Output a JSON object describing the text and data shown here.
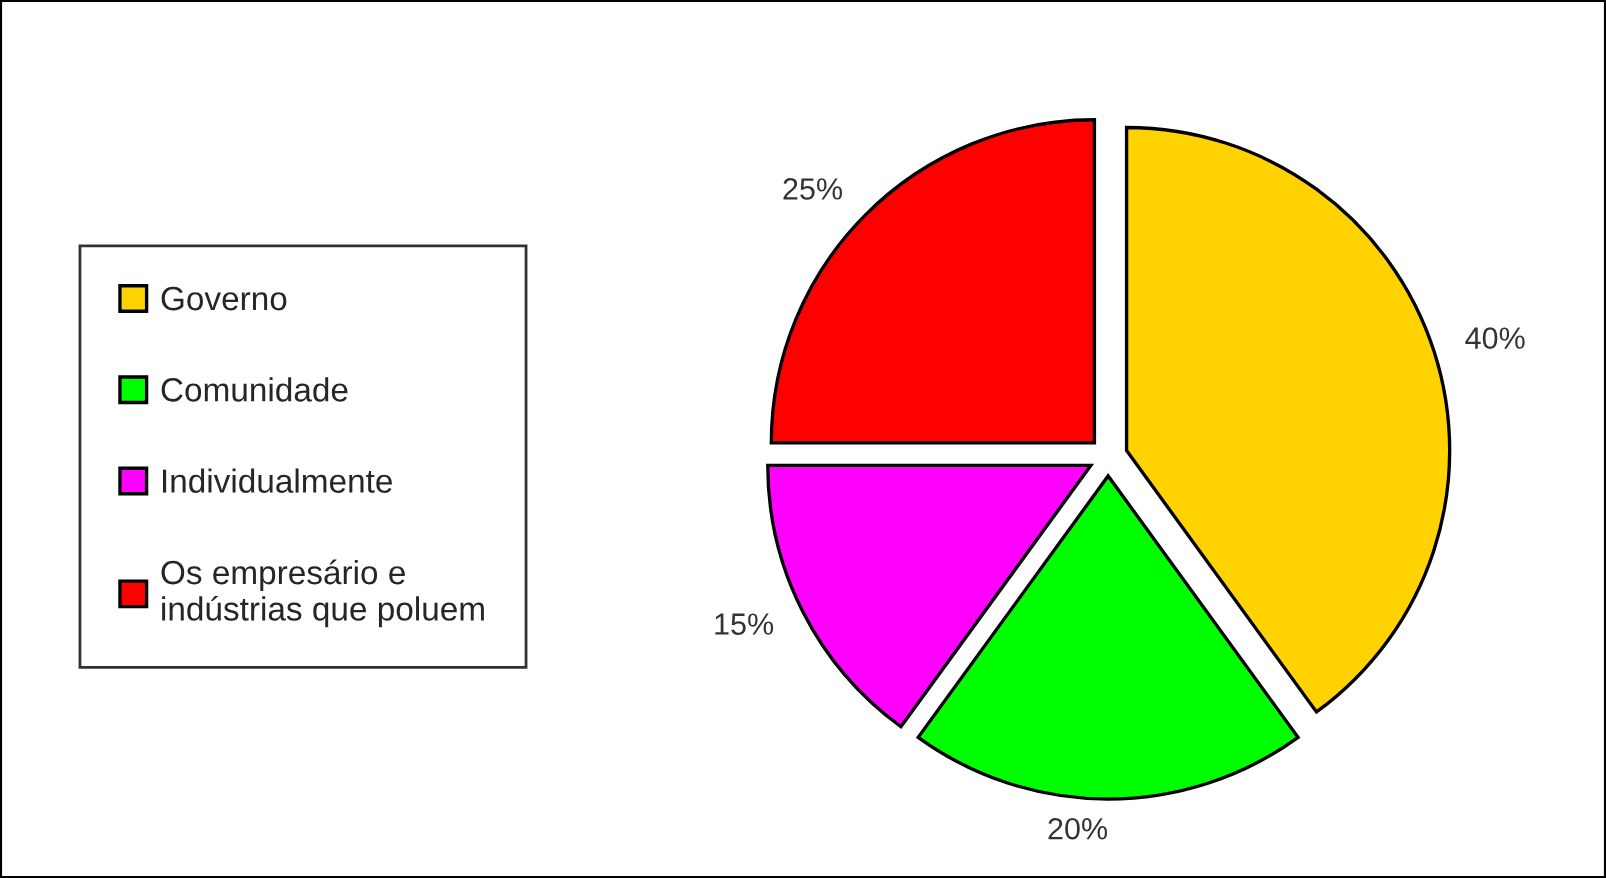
{
  "chart_data": {
    "type": "pie",
    "categories": [
      "Governo",
      "Comunidade",
      "Individualmente",
      "Os empresário e\nindústrias que poluem"
    ],
    "values": [
      40,
      20,
      15,
      25
    ],
    "colors": [
      "#ffd200",
      "#00ff00",
      "#ff00ff",
      "#ff0000"
    ],
    "value_labels": [
      "40%",
      "20%",
      "15%",
      "25%"
    ],
    "legend": "left"
  }
}
